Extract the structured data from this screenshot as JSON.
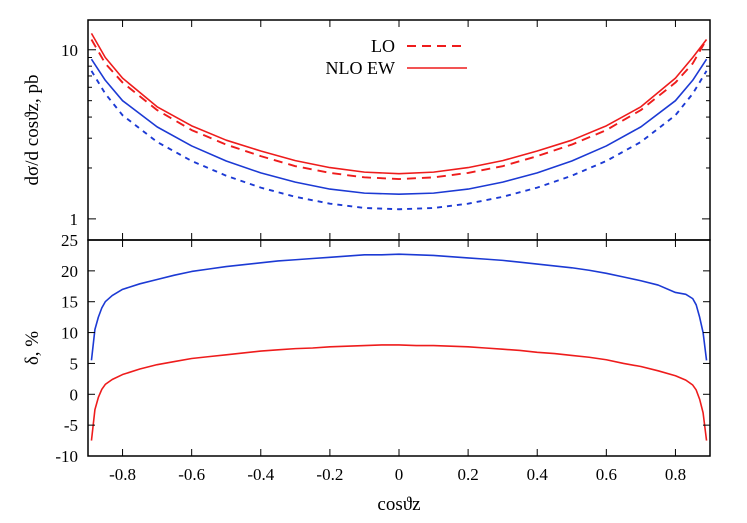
{
  "chart_data": [
    {
      "type": "line",
      "panel": "top",
      "ylabel": "dσ/d cosϑz, pb",
      "xlabel": "",
      "yscale": "log",
      "xlim": [
        -0.9,
        0.9
      ],
      "ylim": [
        0.75,
        15
      ],
      "grid": false,
      "legend_placement": "top-center",
      "x_ticks": [
        -0.8,
        -0.6,
        -0.4,
        -0.2,
        0,
        0.2,
        0.4,
        0.6,
        0.8
      ],
      "y_ticks": [
        {
          "value": 1,
          "label": "1"
        },
        {
          "value": 10,
          "label": "10"
        }
      ],
      "legend": [
        {
          "name": "LO",
          "color": "#ee1c1c",
          "dash": "dashed"
        },
        {
          "name": "NLO EW",
          "color": "#ee1c1c",
          "dash": "solid"
        }
      ],
      "series": [
        {
          "name": "LO",
          "color": "#ee1c1c",
          "dash": "dashed",
          "x": [
            -0.89,
            -0.85,
            -0.8,
            -0.7,
            -0.6,
            -0.5,
            -0.4,
            -0.3,
            -0.2,
            -0.1,
            0,
            0.1,
            0.2,
            0.3,
            0.4,
            0.5,
            0.6,
            0.7,
            0.8,
            0.85,
            0.89
          ],
          "y": [
            11.5,
            8.3,
            6.4,
            4.4,
            3.35,
            2.75,
            2.35,
            2.05,
            1.87,
            1.76,
            1.72,
            1.76,
            1.87,
            2.05,
            2.35,
            2.75,
            3.35,
            4.4,
            6.4,
            8.3,
            11.5
          ]
        },
        {
          "name": "NLO EW",
          "color": "#ee1c1c",
          "dash": "solid",
          "x": [
            -0.89,
            -0.85,
            -0.8,
            -0.7,
            -0.6,
            -0.5,
            -0.4,
            -0.3,
            -0.2,
            -0.1,
            0,
            0.1,
            0.2,
            0.3,
            0.4,
            0.5,
            0.6,
            0.7,
            0.8,
            0.85,
            0.89
          ],
          "y": [
            12.5,
            9.0,
            6.8,
            4.6,
            3.55,
            2.92,
            2.52,
            2.21,
            2.01,
            1.89,
            1.85,
            1.89,
            2.01,
            2.21,
            2.52,
            2.92,
            3.55,
            4.6,
            6.8,
            9.0,
            11.5
          ]
        },
        {
          "color": "#1c3ad4",
          "dash": "dashed",
          "x": [
            -0.89,
            -0.85,
            -0.8,
            -0.7,
            -0.6,
            -0.5,
            -0.4,
            -0.3,
            -0.2,
            -0.1,
            0,
            0.1,
            0.2,
            0.3,
            0.4,
            0.5,
            0.6,
            0.7,
            0.8,
            0.85,
            0.89
          ],
          "y": [
            7.5,
            5.5,
            4.1,
            2.85,
            2.2,
            1.8,
            1.53,
            1.35,
            1.23,
            1.16,
            1.14,
            1.16,
            1.23,
            1.35,
            1.53,
            1.8,
            2.2,
            2.85,
            4.1,
            5.5,
            7.5
          ]
        },
        {
          "color": "#1c3ad4",
          "dash": "solid",
          "x": [
            -0.89,
            -0.85,
            -0.8,
            -0.7,
            -0.6,
            -0.5,
            -0.4,
            -0.3,
            -0.2,
            -0.1,
            0,
            0.1,
            0.2,
            0.3,
            0.4,
            0.5,
            0.6,
            0.7,
            0.8,
            0.85,
            0.89
          ],
          "y": [
            8.8,
            6.6,
            5.0,
            3.5,
            2.7,
            2.2,
            1.87,
            1.65,
            1.5,
            1.42,
            1.4,
            1.42,
            1.5,
            1.65,
            1.87,
            2.2,
            2.7,
            3.5,
            5.0,
            6.6,
            8.8
          ]
        }
      ]
    },
    {
      "type": "line",
      "panel": "bottom",
      "ylabel": "δ, %",
      "xlabel": "cosϑz",
      "xlim": [
        -0.9,
        0.9
      ],
      "ylim": [
        -10,
        25
      ],
      "grid": false,
      "x_ticks": [
        -0.8,
        -0.6,
        -0.4,
        -0.2,
        0,
        0.2,
        0.4,
        0.6,
        0.8
      ],
      "y_ticks": [
        {
          "value": -10,
          "label": "-10"
        },
        {
          "value": -5,
          "label": "-5"
        },
        {
          "value": 0,
          "label": "0"
        },
        {
          "value": 5,
          "label": "5"
        },
        {
          "value": 10,
          "label": "10"
        },
        {
          "value": 15,
          "label": "15"
        },
        {
          "value": 20,
          "label": "20"
        },
        {
          "value": 25,
          "label": "25"
        }
      ],
      "series": [
        {
          "color": "#1c3ad4",
          "x": [
            -0.89,
            -0.88,
            -0.87,
            -0.86,
            -0.85,
            -0.83,
            -0.8,
            -0.75,
            -0.7,
            -0.65,
            -0.6,
            -0.55,
            -0.5,
            -0.45,
            -0.4,
            -0.35,
            -0.3,
            -0.25,
            -0.2,
            -0.15,
            -0.1,
            -0.05,
            0,
            0.05,
            0.1,
            0.15,
            0.2,
            0.25,
            0.3,
            0.35,
            0.4,
            0.45,
            0.5,
            0.55,
            0.6,
            0.65,
            0.7,
            0.75,
            0.8,
            0.83,
            0.85,
            0.86,
            0.87,
            0.88,
            0.89
          ],
          "y": [
            5.5,
            10.5,
            12.5,
            14.0,
            15.0,
            16.0,
            17.0,
            17.9,
            18.6,
            19.3,
            19.9,
            20.3,
            20.7,
            21.0,
            21.3,
            21.6,
            21.8,
            22.0,
            22.2,
            22.4,
            22.6,
            22.6,
            22.7,
            22.6,
            22.5,
            22.3,
            22.1,
            21.9,
            21.7,
            21.4,
            21.1,
            20.8,
            20.5,
            20.1,
            19.6,
            19.0,
            18.4,
            17.7,
            16.5,
            16.2,
            15.5,
            14.5,
            12.5,
            10.0,
            5.5
          ]
        },
        {
          "color": "#ee1c1c",
          "x": [
            -0.89,
            -0.88,
            -0.87,
            -0.86,
            -0.85,
            -0.83,
            -0.8,
            -0.75,
            -0.7,
            -0.65,
            -0.6,
            -0.55,
            -0.5,
            -0.45,
            -0.4,
            -0.35,
            -0.3,
            -0.25,
            -0.2,
            -0.15,
            -0.1,
            -0.05,
            0,
            0.05,
            0.1,
            0.15,
            0.2,
            0.25,
            0.3,
            0.35,
            0.4,
            0.45,
            0.5,
            0.55,
            0.6,
            0.65,
            0.7,
            0.75,
            0.8,
            0.83,
            0.85,
            0.86,
            0.87,
            0.88,
            0.89
          ],
          "y": [
            -7.5,
            -2.5,
            -0.5,
            0.8,
            1.6,
            2.4,
            3.2,
            4.1,
            4.8,
            5.3,
            5.8,
            6.1,
            6.4,
            6.7,
            7.0,
            7.2,
            7.4,
            7.5,
            7.7,
            7.8,
            7.9,
            8.0,
            8.0,
            7.9,
            7.9,
            7.8,
            7.7,
            7.5,
            7.3,
            7.1,
            6.8,
            6.6,
            6.3,
            6.0,
            5.6,
            5.0,
            4.5,
            3.8,
            3.0,
            2.3,
            1.5,
            0.7,
            -0.8,
            -3.0,
            -7.5
          ]
        }
      ]
    }
  ]
}
